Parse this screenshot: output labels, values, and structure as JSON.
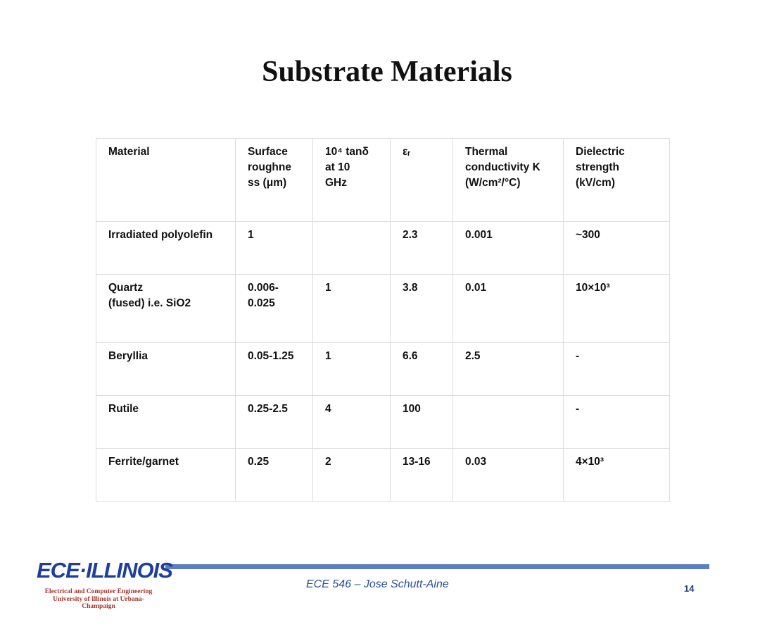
{
  "title": "Substrate Materials",
  "table": {
    "header": [
      "Material",
      "Surface\nroughne\nss (μm)",
      "10⁴ tanδ\nat 10\nGHz",
      "εᵣ",
      "Thermal\nconductivity K\n(W/cm²/°C)",
      "Dielectric\nstrength\n(kV/cm)"
    ],
    "rows": [
      [
        "Irradiated polyolefin",
        "1",
        "",
        "2.3",
        "0.001",
        "~300"
      ],
      [
        "Quartz\n(fused) i.e. SiO2",
        "0.006-\n0.025",
        "1",
        "3.8",
        "0.01",
        "10×10³"
      ],
      [
        "Beryllia",
        "0.05-1.25",
        "1",
        "6.6",
        "2.5",
        "-"
      ],
      [
        "Rutile",
        "0.25-2.5",
        "4",
        "100",
        "",
        "-"
      ],
      [
        "Ferrite/garnet",
        "0.25",
        "2",
        "13-16",
        "0.03",
        "4×10³"
      ]
    ]
  },
  "footer": {
    "logo": "ECE·ILLINOIS",
    "department": "Electrical and Computer Engineering",
    "university": "University of Illinois at Urbana-Champaign",
    "course": "ECE 546 – Jose Schutt-Aine",
    "page": "14"
  }
}
